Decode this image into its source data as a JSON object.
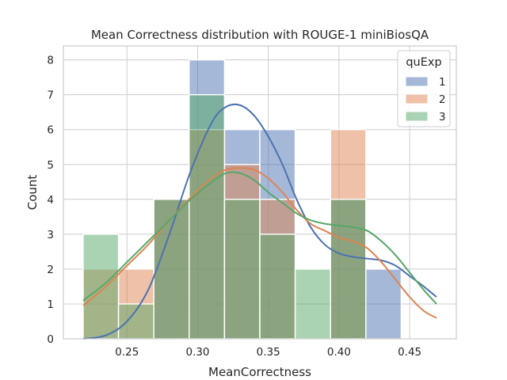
{
  "chart_data": {
    "type": "histogram",
    "title": "Mean Correctness distribution with ROUGE-1 miniBiosQA",
    "xlabel": "MeanCorrectness",
    "ylabel": "Count",
    "xlim": [
      0.205,
      0.483
    ],
    "ylim": [
      0,
      8.4
    ],
    "xticks": [
      0.25,
      0.3,
      0.35,
      0.4,
      0.45
    ],
    "xtick_labels": [
      "0.25",
      "0.30",
      "0.35",
      "0.40",
      "0.45"
    ],
    "yticks": [
      0,
      1,
      2,
      3,
      4,
      5,
      6,
      7,
      8
    ],
    "ytick_labels": [
      "0",
      "1",
      "2",
      "3",
      "4",
      "5",
      "6",
      "7",
      "8"
    ],
    "grid": true,
    "legend": {
      "title": "quExp",
      "placement": "top-right"
    },
    "bin_edges": [
      0.219,
      0.244,
      0.269,
      0.294,
      0.319,
      0.344,
      0.369,
      0.394,
      0.419,
      0.444,
      0.469
    ],
    "series": [
      {
        "name": "1",
        "color": "#4c72b0",
        "counts": [
          0,
          0,
          4,
          8,
          6,
          6,
          0,
          4,
          2,
          0
        ],
        "kde": {
          "x": [
            0.219,
            0.235,
            0.25,
            0.265,
            0.28,
            0.295,
            0.31,
            0.32,
            0.33,
            0.34,
            0.35,
            0.36,
            0.37,
            0.38,
            0.39,
            0.4,
            0.41,
            0.42,
            0.43,
            0.44,
            0.45,
            0.46,
            0.469
          ],
          "y": [
            0.0,
            0.1,
            0.5,
            1.4,
            3.0,
            4.8,
            6.2,
            6.65,
            6.7,
            6.4,
            5.8,
            5.0,
            4.0,
            3.2,
            2.7,
            2.45,
            2.35,
            2.3,
            2.25,
            2.1,
            1.8,
            1.5,
            1.2
          ]
        }
      },
      {
        "name": "2",
        "color": "#dd8452",
        "counts": [
          2,
          2,
          4,
          6,
          5,
          4,
          0,
          6,
          0,
          0
        ],
        "kde": {
          "x": [
            0.219,
            0.235,
            0.25,
            0.265,
            0.28,
            0.295,
            0.31,
            0.32,
            0.33,
            0.34,
            0.35,
            0.36,
            0.37,
            0.38,
            0.39,
            0.4,
            0.41,
            0.42,
            0.43,
            0.44,
            0.45,
            0.46,
            0.469
          ],
          "y": [
            0.95,
            1.5,
            2.1,
            2.7,
            3.4,
            4.05,
            4.6,
            4.85,
            4.9,
            4.85,
            4.6,
            4.2,
            3.7,
            3.3,
            3.1,
            2.9,
            2.8,
            2.6,
            2.2,
            1.7,
            1.2,
            0.8,
            0.6
          ]
        }
      },
      {
        "name": "3",
        "color": "#55a868",
        "counts": [
          3,
          1,
          4,
          7,
          4,
          3,
          2,
          4,
          0,
          0
        ],
        "kde": {
          "x": [
            0.219,
            0.235,
            0.25,
            0.265,
            0.28,
            0.295,
            0.31,
            0.32,
            0.33,
            0.34,
            0.35,
            0.36,
            0.37,
            0.38,
            0.39,
            0.4,
            0.41,
            0.42,
            0.43,
            0.44,
            0.45,
            0.46,
            0.469
          ],
          "y": [
            1.1,
            1.6,
            2.2,
            2.8,
            3.4,
            4.0,
            4.5,
            4.75,
            4.75,
            4.55,
            4.2,
            3.9,
            3.6,
            3.4,
            3.3,
            3.25,
            3.2,
            3.1,
            2.8,
            2.4,
            1.9,
            1.4,
            1.0
          ]
        }
      }
    ]
  }
}
